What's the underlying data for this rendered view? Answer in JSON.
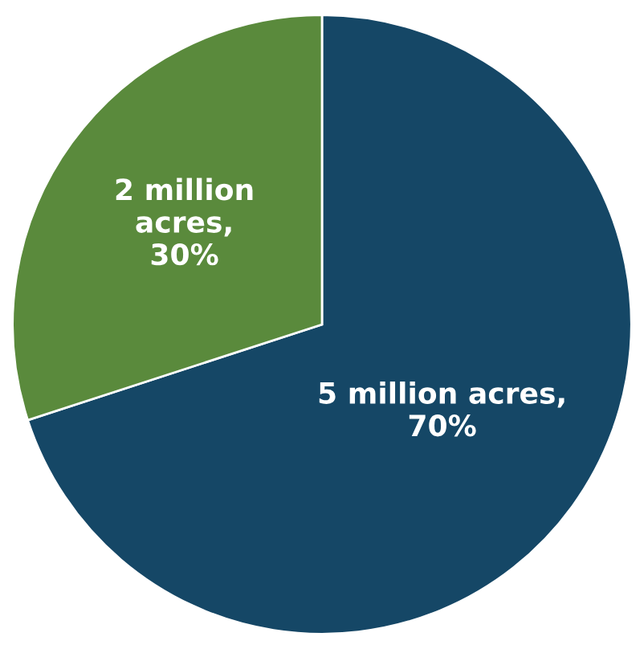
{
  "chart_data": {
    "type": "pie",
    "categories": [
      null,
      null
    ],
    "values": [
      70,
      30
    ],
    "colors": [
      "#154766",
      "#5a8a3c"
    ],
    "value_labels": [
      "5 million acres,\n70%",
      "2 million\nacres,\n30%"
    ]
  }
}
